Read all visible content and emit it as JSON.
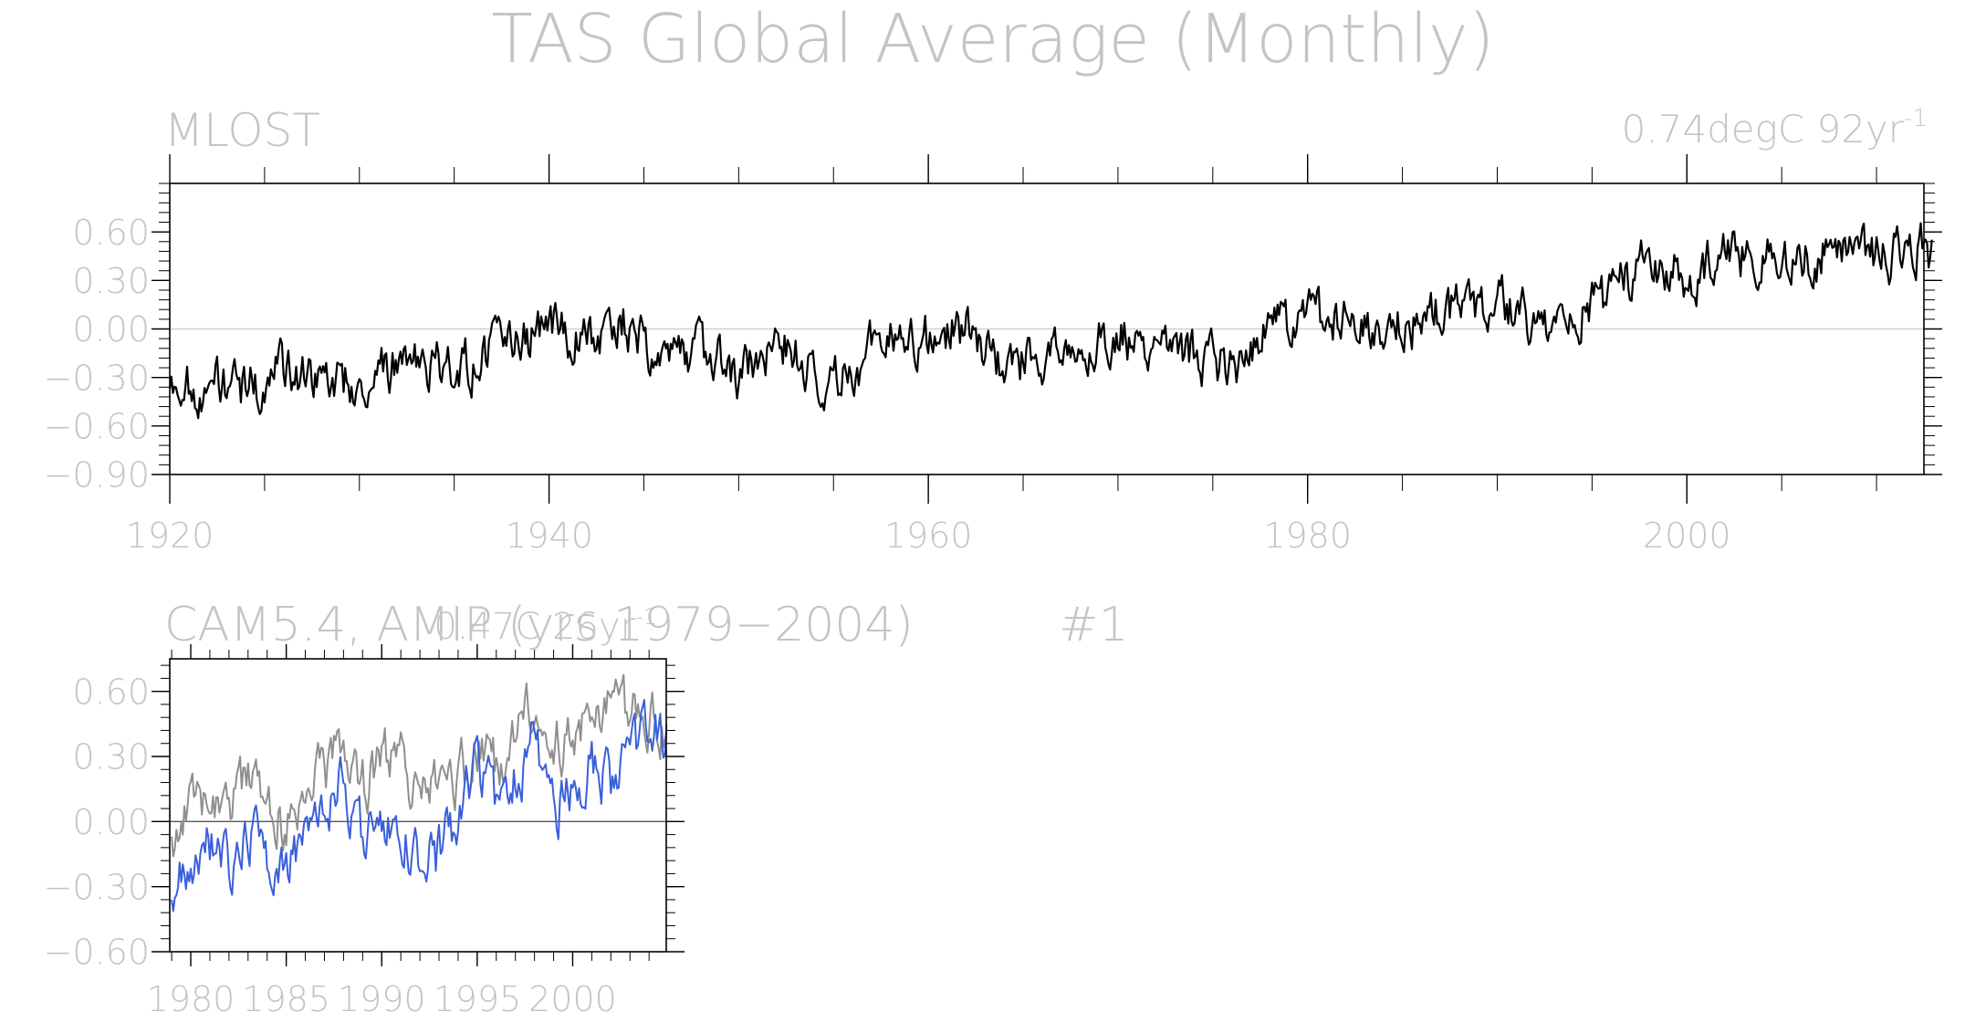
{
  "page": {
    "title": "TAS Global Average (Monthly)"
  },
  "chart_data": [
    {
      "type": "line",
      "left_label": "MLOST",
      "trend_value": "0.74degC 92yr",
      "trend_exp": "-1",
      "ylim": [
        -0.9,
        0.9
      ],
      "y_ticks": [
        0.6,
        0.3,
        0.0,
        -0.3,
        -0.6,
        -0.9
      ],
      "y_tick_labels": [
        "0.60",
        "0.30",
        "0.00",
        "−0.30",
        "−0.60",
        "−0.90"
      ],
      "xlim": [
        1920,
        2012.5
      ],
      "x_ticks": [
        1920,
        1940,
        1960,
        1980,
        2000
      ],
      "x_tick_labels": [
        "1920",
        "1940",
        "1960",
        "1980",
        "2000"
      ],
      "grid": false,
      "zero_line": true,
      "series": [
        {
          "color": "#000000",
          "x": [
            1920,
            1922,
            1924,
            1926,
            1928,
            1930,
            1932,
            1934,
            1936,
            1938,
            1940,
            1942,
            1944,
            1946,
            1948,
            1950,
            1952,
            1954,
            1956,
            1958,
            1960,
            1962,
            1964,
            1966,
            1968,
            1970,
            1972,
            1974,
            1976,
            1978,
            1980,
            1982,
            1984,
            1986,
            1988,
            1990,
            1992,
            1994,
            1996,
            1998,
            2000,
            2002,
            2004,
            2006,
            2008,
            2010,
            2012
          ],
          "y": [
            -0.33,
            -0.35,
            -0.36,
            -0.26,
            -0.3,
            -0.35,
            -0.2,
            -0.25,
            -0.2,
            -0.1,
            0.0,
            -0.05,
            0.05,
            -0.2,
            -0.15,
            -0.28,
            -0.05,
            -0.3,
            -0.25,
            0.0,
            -0.05,
            0.0,
            -0.22,
            -0.17,
            -0.13,
            -0.05,
            -0.08,
            -0.15,
            -0.22,
            0.0,
            0.05,
            0.05,
            0.05,
            0.05,
            0.15,
            0.2,
            0.05,
            0.1,
            0.2,
            0.45,
            0.3,
            0.45,
            0.45,
            0.45,
            0.5,
            0.45,
            0.48
          ]
        }
      ]
    },
    {
      "type": "line",
      "left_label": "CAM5.4, AMIP (yrs 1979−2004)",
      "right_label": "#1",
      "trend_value": "0.47C 26yr",
      "trend_exp": "-1",
      "ylim": [
        -0.6,
        0.75
      ],
      "y_ticks": [
        0.6,
        0.3,
        0.0,
        -0.3,
        -0.6
      ],
      "y_tick_labels": [
        "0.60",
        "0.30",
        "0.00",
        "−0.30",
        "−0.60"
      ],
      "xlim": [
        1978.9,
        2004.9
      ],
      "x_ticks": [
        1980,
        1985,
        1990,
        1995,
        2000
      ],
      "x_tick_labels": [
        "1980",
        "1985",
        "1990",
        "1995",
        "2000"
      ],
      "grid": false,
      "zero_line": true,
      "series": [
        {
          "color": "#8f8f8f",
          "x": [
            1979,
            1980,
            1981,
            1982,
            1983,
            1984,
            1985,
            1986,
            1987,
            1988,
            1989,
            1990,
            1991,
            1992,
            1993,
            1994,
            1995,
            1996,
            1997,
            1998,
            1999,
            2000,
            2001,
            2002,
            2003,
            2004
          ],
          "y": [
            -0.05,
            0.05,
            0.15,
            0.1,
            0.15,
            0.05,
            0.0,
            0.1,
            0.25,
            0.3,
            0.15,
            0.3,
            0.25,
            0.1,
            0.15,
            0.2,
            0.35,
            0.25,
            0.4,
            0.55,
            0.35,
            0.4,
            0.45,
            0.5,
            0.5,
            0.45
          ]
        },
        {
          "color": "#3a5fd9",
          "x": [
            1979,
            1980,
            1981,
            1982,
            1983,
            1984,
            1985,
            1986,
            1987,
            1988,
            1989,
            1990,
            1991,
            1992,
            1993,
            1994,
            1995,
            1996,
            1997,
            1998,
            1999,
            2000,
            2001,
            2002,
            2003,
            2004
          ],
          "y": [
            -0.35,
            -0.15,
            -0.1,
            -0.2,
            -0.05,
            -0.15,
            -0.2,
            -0.1,
            0.05,
            0.2,
            -0.1,
            0.05,
            0.0,
            -0.2,
            -0.15,
            0.0,
            0.25,
            0.1,
            0.2,
            0.35,
            0.05,
            0.15,
            0.25,
            0.2,
            0.35,
            0.4
          ]
        }
      ]
    }
  ]
}
